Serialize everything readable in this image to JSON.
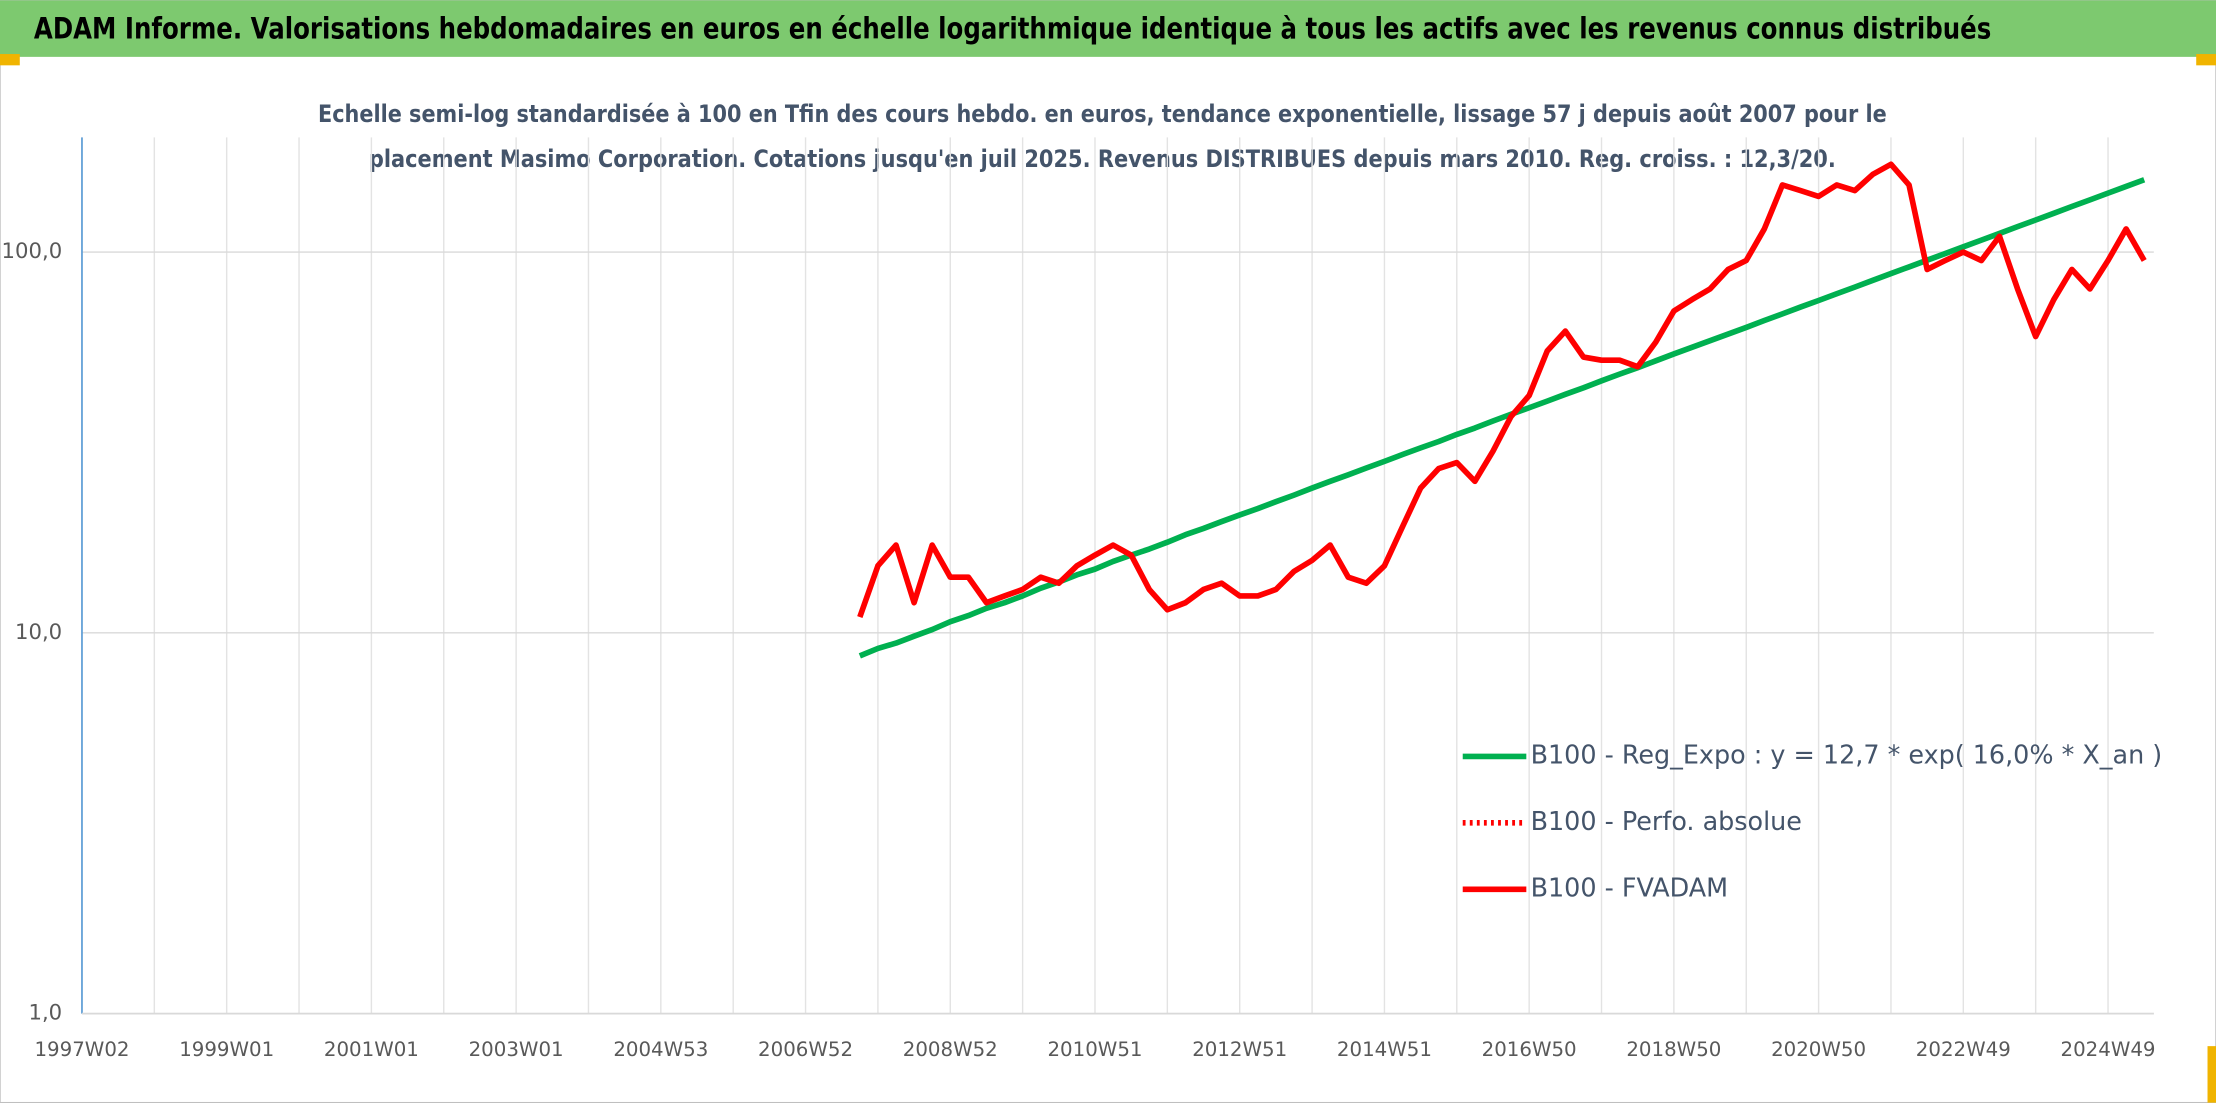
{
  "chart_data": {
    "type": "line",
    "title": "ADAM Informe. Valorisations hebdomadaires en euros en échelle logarithmique identique à tous les actifs avec les revenus connus distribués",
    "subtitle": [
      "Echelle semi-log standardisée à 100 en Tfin des cours hebdo. en euros, tendance exponentielle, lissage 57 j depuis août 2007 pour le",
      "placement Masimo Corporation. Cotations jusqu'en juil 2025. Revenus DISTRIBUES depuis mars 2010. Reg. croiss. : 12,3/20."
    ],
    "categories": [
      "1997W02",
      null,
      null,
      null,
      null,
      null,
      null,
      null,
      "1999W01",
      null,
      null,
      null,
      null,
      null,
      null,
      null,
      "2001W01",
      null,
      null,
      null,
      null,
      null,
      null,
      null,
      "2003W01",
      null,
      null,
      null,
      null,
      null,
      null,
      null,
      "2004W53",
      null,
      null,
      null,
      null,
      null,
      null,
      null,
      "2006W52",
      null,
      null,
      null,
      null,
      null,
      null,
      null,
      "2008W52",
      null,
      null,
      null,
      null,
      null,
      null,
      null,
      "2010W51",
      null,
      null,
      null,
      null,
      null,
      null,
      null,
      "2012W51",
      null,
      null,
      null,
      null,
      null,
      null,
      null,
      "2014W51",
      null,
      null,
      null,
      null,
      null,
      null,
      null,
      "2016W50",
      null,
      null,
      null,
      null,
      null,
      null,
      null,
      "2018W50",
      null,
      null,
      null,
      null,
      null,
      null,
      null,
      "2020W50",
      null,
      null,
      null,
      null,
      null,
      null,
      null,
      "2022W49",
      null,
      null,
      null,
      null,
      null,
      null,
      null,
      "2024W49",
      null,
      null
    ],
    "log_y": true,
    "ylim": [
      1,
      200
    ],
    "yticks": [
      {
        "value": 1,
        "label": "1,0"
      },
      {
        "value": 10,
        "label": "10,0"
      },
      {
        "value": 100,
        "label": "100,0"
      }
    ],
    "grid": true,
    "series": [
      {
        "name": "B100 - Reg_Expo : y = 12,7 * exp( 16,0% *  X_an )",
        "color": "#00b050",
        "dash": "solid",
        "values": [
          null,
          null,
          null,
          null,
          null,
          null,
          null,
          null,
          null,
          null,
          null,
          null,
          null,
          null,
          null,
          null,
          null,
          null,
          null,
          null,
          null,
          null,
          null,
          null,
          null,
          null,
          null,
          null,
          null,
          null,
          null,
          null,
          null,
          null,
          null,
          null,
          null,
          null,
          null,
          null,
          null,
          null,
          null,
          8.7,
          9.1,
          9.4,
          9.8,
          10.2,
          10.7,
          11.1,
          11.6,
          12.0,
          12.5,
          13.1,
          13.6,
          14.2,
          14.7,
          15.4,
          16.0,
          16.6,
          17.3,
          18.1,
          18.8,
          19.6,
          20.4,
          21.2,
          22.1,
          23.0,
          24.0,
          25.0,
          26.0,
          27.1,
          28.2,
          29.4,
          30.6,
          31.8,
          33.2,
          34.5,
          36.0,
          37.5,
          39.0,
          40.6,
          42.3,
          44.0,
          45.9,
          47.8,
          49.7,
          51.8,
          54.0,
          56.2,
          58.5,
          60.9,
          63.4,
          66.1,
          68.8,
          71.7,
          74.6,
          77.7,
          80.9,
          84.3,
          87.8,
          91.4,
          95.2,
          99.1,
          103.2,
          107.5,
          111.9,
          116.6,
          121.4,
          126.4,
          131.7,
          137.1,
          142.8,
          148.7,
          154.8
        ]
      },
      {
        "name": "B100 - Perfo. absolue",
        "color": "#ff0000",
        "dash": "dotted",
        "values": [
          null,
          null,
          null,
          null,
          null,
          null,
          null,
          null,
          null,
          null,
          null,
          null,
          null,
          null,
          null,
          null,
          null,
          null,
          null,
          null,
          null,
          null,
          null,
          null,
          null,
          null,
          null,
          null,
          null,
          null,
          null,
          null,
          null,
          null,
          null,
          null,
          null,
          null,
          null,
          null,
          null,
          null,
          null,
          null,
          null,
          null,
          null,
          null,
          null,
          null,
          null,
          null,
          null,
          null,
          null,
          null,
          null,
          null,
          null,
          null,
          null,
          null,
          null,
          null,
          null,
          null,
          null,
          null,
          null,
          null,
          null,
          null,
          null,
          null,
          null,
          null,
          null,
          null,
          null,
          null,
          null,
          null,
          null,
          null,
          null,
          null,
          null,
          null,
          null,
          null,
          null,
          null,
          null,
          null,
          null,
          null,
          null,
          null,
          null,
          null,
          null,
          null,
          null,
          null,
          null,
          null,
          null,
          null,
          null,
          null,
          null,
          null,
          null,
          null,
          null
        ]
      },
      {
        "name": "B100 - FVADAM",
        "color": "#ff0000",
        "dash": "solid",
        "values": [
          null,
          null,
          null,
          null,
          null,
          null,
          null,
          null,
          null,
          null,
          null,
          null,
          null,
          null,
          null,
          null,
          null,
          null,
          null,
          null,
          null,
          null,
          null,
          null,
          null,
          null,
          null,
          null,
          null,
          null,
          null,
          null,
          null,
          null,
          null,
          null,
          null,
          null,
          null,
          null,
          null,
          null,
          null,
          11,
          15,
          17,
          12,
          17,
          14,
          14,
          12,
          12.5,
          13,
          14,
          13.5,
          15,
          16,
          17,
          16,
          13,
          11.5,
          12,
          13,
          13.5,
          12.5,
          12.5,
          13,
          14.5,
          15.5,
          17,
          14,
          13.5,
          15,
          19,
          24,
          27,
          28,
          25,
          30,
          37,
          42,
          55,
          62,
          53,
          52,
          52,
          50,
          58,
          70,
          75,
          80,
          90,
          95,
          115,
          150,
          145,
          140,
          150,
          145,
          160,
          170,
          150,
          90,
          95,
          100,
          95,
          110,
          80,
          60,
          75,
          90,
          80,
          95,
          115,
          95
        ]
      }
    ]
  }
}
